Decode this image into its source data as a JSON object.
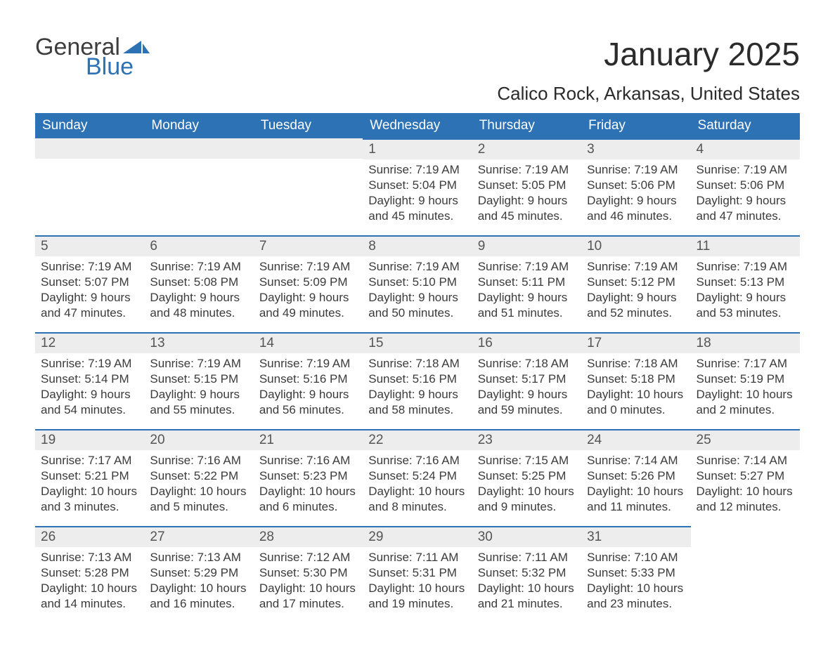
{
  "logo": {
    "word1": "General",
    "word2": "Blue",
    "flag_color": "#2d72b5"
  },
  "title": "January 2025",
  "location": "Calico Rock, Arkansas, United States",
  "colors": {
    "header_bg": "#2d72b5",
    "header_text": "#ffffff",
    "daynum_bg": "#ededed",
    "border": "#2d72b5",
    "body_text": "#3b3b3b"
  },
  "typography": {
    "title_fontsize": 46,
    "location_fontsize": 26,
    "header_fontsize": 19,
    "daynum_fontsize": 19,
    "body_fontsize": 17
  },
  "weekdays": [
    "Sunday",
    "Monday",
    "Tuesday",
    "Wednesday",
    "Thursday",
    "Friday",
    "Saturday"
  ],
  "calendar": {
    "type": "table",
    "leading_blanks": 3,
    "days": [
      {
        "n": "1",
        "sunrise": "7:19 AM",
        "sunset": "5:04 PM",
        "daylight": "9 hours and 45 minutes."
      },
      {
        "n": "2",
        "sunrise": "7:19 AM",
        "sunset": "5:05 PM",
        "daylight": "9 hours and 45 minutes."
      },
      {
        "n": "3",
        "sunrise": "7:19 AM",
        "sunset": "5:06 PM",
        "daylight": "9 hours and 46 minutes."
      },
      {
        "n": "4",
        "sunrise": "7:19 AM",
        "sunset": "5:06 PM",
        "daylight": "9 hours and 47 minutes."
      },
      {
        "n": "5",
        "sunrise": "7:19 AM",
        "sunset": "5:07 PM",
        "daylight": "9 hours and 47 minutes."
      },
      {
        "n": "6",
        "sunrise": "7:19 AM",
        "sunset": "5:08 PM",
        "daylight": "9 hours and 48 minutes."
      },
      {
        "n": "7",
        "sunrise": "7:19 AM",
        "sunset": "5:09 PM",
        "daylight": "9 hours and 49 minutes."
      },
      {
        "n": "8",
        "sunrise": "7:19 AM",
        "sunset": "5:10 PM",
        "daylight": "9 hours and 50 minutes."
      },
      {
        "n": "9",
        "sunrise": "7:19 AM",
        "sunset": "5:11 PM",
        "daylight": "9 hours and 51 minutes."
      },
      {
        "n": "10",
        "sunrise": "7:19 AM",
        "sunset": "5:12 PM",
        "daylight": "9 hours and 52 minutes."
      },
      {
        "n": "11",
        "sunrise": "7:19 AM",
        "sunset": "5:13 PM",
        "daylight": "9 hours and 53 minutes."
      },
      {
        "n": "12",
        "sunrise": "7:19 AM",
        "sunset": "5:14 PM",
        "daylight": "9 hours and 54 minutes."
      },
      {
        "n": "13",
        "sunrise": "7:19 AM",
        "sunset": "5:15 PM",
        "daylight": "9 hours and 55 minutes."
      },
      {
        "n": "14",
        "sunrise": "7:19 AM",
        "sunset": "5:16 PM",
        "daylight": "9 hours and 56 minutes."
      },
      {
        "n": "15",
        "sunrise": "7:18 AM",
        "sunset": "5:16 PM",
        "daylight": "9 hours and 58 minutes."
      },
      {
        "n": "16",
        "sunrise": "7:18 AM",
        "sunset": "5:17 PM",
        "daylight": "9 hours and 59 minutes."
      },
      {
        "n": "17",
        "sunrise": "7:18 AM",
        "sunset": "5:18 PM",
        "daylight": "10 hours and 0 minutes."
      },
      {
        "n": "18",
        "sunrise": "7:17 AM",
        "sunset": "5:19 PM",
        "daylight": "10 hours and 2 minutes."
      },
      {
        "n": "19",
        "sunrise": "7:17 AM",
        "sunset": "5:21 PM",
        "daylight": "10 hours and 3 minutes."
      },
      {
        "n": "20",
        "sunrise": "7:16 AM",
        "sunset": "5:22 PM",
        "daylight": "10 hours and 5 minutes."
      },
      {
        "n": "21",
        "sunrise": "7:16 AM",
        "sunset": "5:23 PM",
        "daylight": "10 hours and 6 minutes."
      },
      {
        "n": "22",
        "sunrise": "7:16 AM",
        "sunset": "5:24 PM",
        "daylight": "10 hours and 8 minutes."
      },
      {
        "n": "23",
        "sunrise": "7:15 AM",
        "sunset": "5:25 PM",
        "daylight": "10 hours and 9 minutes."
      },
      {
        "n": "24",
        "sunrise": "7:14 AM",
        "sunset": "5:26 PM",
        "daylight": "10 hours and 11 minutes."
      },
      {
        "n": "25",
        "sunrise": "7:14 AM",
        "sunset": "5:27 PM",
        "daylight": "10 hours and 12 minutes."
      },
      {
        "n": "26",
        "sunrise": "7:13 AM",
        "sunset": "5:28 PM",
        "daylight": "10 hours and 14 minutes."
      },
      {
        "n": "27",
        "sunrise": "7:13 AM",
        "sunset": "5:29 PM",
        "daylight": "10 hours and 16 minutes."
      },
      {
        "n": "28",
        "sunrise": "7:12 AM",
        "sunset": "5:30 PM",
        "daylight": "10 hours and 17 minutes."
      },
      {
        "n": "29",
        "sunrise": "7:11 AM",
        "sunset": "5:31 PM",
        "daylight": "10 hours and 19 minutes."
      },
      {
        "n": "30",
        "sunrise": "7:11 AM",
        "sunset": "5:32 PM",
        "daylight": "10 hours and 21 minutes."
      },
      {
        "n": "31",
        "sunrise": "7:10 AM",
        "sunset": "5:33 PM",
        "daylight": "10 hours and 23 minutes."
      }
    ]
  },
  "labels": {
    "sunrise": "Sunrise: ",
    "sunset": "Sunset: ",
    "daylight": "Daylight: "
  }
}
